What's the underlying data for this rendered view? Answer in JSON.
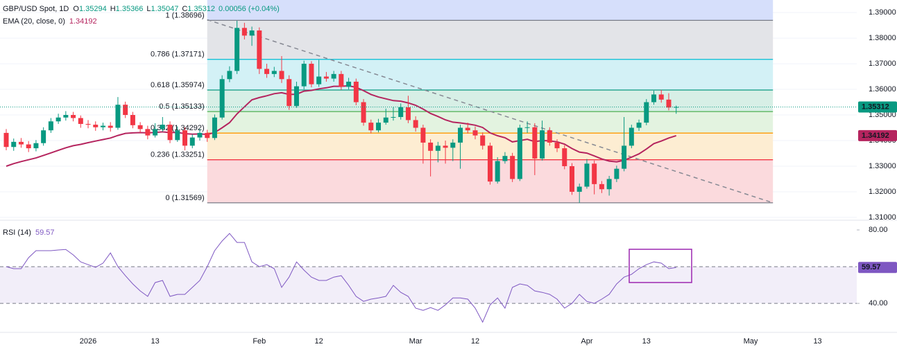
{
  "chart_data": [
    {
      "type": "candlestick",
      "legend_title": "GBP/USD Spot, 1D",
      "ohlc_labels": [
        "O",
        "H",
        "L",
        "C"
      ],
      "change": "0.00056 (+0.04%)",
      "up_color": "#089981",
      "down_color": "#f23645",
      "categories": [
        null,
        null,
        null,
        null,
        null,
        null,
        null,
        null,
        null,
        null,
        null,
        "2026",
        null,
        null,
        null,
        null,
        null,
        null,
        null,
        null,
        "13",
        null,
        null,
        null,
        null,
        null,
        null,
        null,
        null,
        null,
        null,
        null,
        null,
        null,
        "Feb",
        null,
        null,
        null,
        null,
        null,
        null,
        null,
        "12",
        null,
        null,
        null,
        null,
        null,
        null,
        null,
        null,
        null,
        null,
        null,
        null,
        "Mar",
        null,
        null,
        null,
        null,
        null,
        null,
        null,
        "12",
        null,
        null,
        null,
        null,
        null,
        null,
        null,
        null,
        null,
        null,
        null,
        null,
        null,
        null,
        "Apr",
        null,
        null,
        null,
        null,
        null,
        null,
        null,
        "13",
        null,
        null,
        null,
        null,
        null,
        null,
        null,
        null,
        null,
        null,
        null,
        null,
        null,
        "May",
        null,
        null,
        null,
        null,
        null,
        null,
        null,
        null,
        "13"
      ],
      "open": [
        1.343,
        1.3375,
        1.3395,
        1.3385,
        1.337,
        1.339,
        1.344,
        1.3475,
        1.349,
        1.35,
        1.3488,
        1.3465,
        1.3462,
        1.3452,
        1.3458,
        1.345,
        1.354,
        1.35,
        1.346,
        1.3445,
        1.342,
        1.3445,
        1.3462,
        1.3402,
        1.344,
        1.338,
        1.3412,
        1.343,
        1.341,
        1.349,
        1.364,
        1.3672,
        1.384,
        1.381,
        1.383,
        1.368,
        1.366,
        1.3672,
        1.364,
        1.3535,
        1.3612,
        1.37,
        1.362,
        1.365,
        1.3642,
        1.366,
        1.361,
        1.363,
        1.355,
        1.347,
        1.344,
        1.347,
        1.349,
        1.3492,
        1.353,
        1.348,
        1.345,
        1.3392,
        1.336,
        1.338,
        1.3372,
        1.3392,
        1.345,
        1.344,
        1.342,
        1.338,
        1.324,
        1.332,
        1.334,
        1.325,
        1.345,
        1.3452,
        1.333,
        1.344,
        1.3392,
        1.337,
        1.33,
        1.32,
        1.322,
        1.331,
        1.323,
        1.321,
        1.325,
        1.329,
        1.338,
        1.345,
        1.347,
        1.355,
        1.358,
        1.356,
        1.35294,
        null,
        null,
        null,
        null,
        null,
        null,
        null,
        null,
        null,
        null,
        null,
        null,
        null,
        null,
        null,
        null,
        null,
        null,
        null
      ],
      "high": [
        1.3445,
        1.3408,
        1.341,
        1.3398,
        1.3402,
        1.3452,
        1.3488,
        1.3505,
        1.3515,
        1.3512,
        1.3498,
        1.348,
        1.3475,
        1.347,
        1.3472,
        1.357,
        1.3552,
        1.3512,
        1.3472,
        1.3458,
        1.3468,
        1.3492,
        1.3475,
        1.3455,
        1.3452,
        1.3425,
        1.3445,
        1.3442,
        1.3502,
        1.3655,
        1.369,
        1.3868,
        1.386,
        1.3845,
        1.3842,
        1.37,
        1.3688,
        1.373,
        1.3655,
        1.363,
        1.3712,
        1.371,
        1.3715,
        1.3668,
        1.3672,
        1.3672,
        1.3645,
        1.3642,
        1.3562,
        1.3482,
        1.3485,
        1.3525,
        1.353,
        1.3545,
        1.3575,
        1.3495,
        1.3462,
        1.3405,
        1.3395,
        1.34,
        1.3405,
        1.3462,
        1.347,
        1.3455,
        1.3432,
        1.3392,
        1.3335,
        1.3355,
        1.3352,
        1.3462,
        1.3475,
        1.3468,
        1.3478,
        1.3452,
        1.3405,
        1.3382,
        1.3312,
        1.3232,
        1.3328,
        1.3322,
        1.3242,
        1.3262,
        1.3302,
        1.3492,
        1.3462,
        1.3482,
        1.3562,
        1.3595,
        1.3598,
        1.3585,
        1.35366,
        null,
        null,
        null,
        null,
        null,
        null,
        null,
        null,
        null,
        null,
        null,
        null,
        null,
        null,
        null,
        null,
        null,
        null,
        null
      ],
      "low": [
        1.3362,
        1.336,
        1.3372,
        1.3355,
        1.3358,
        1.338,
        1.343,
        1.3465,
        1.3478,
        1.3475,
        1.345,
        1.3448,
        1.3438,
        1.344,
        1.3435,
        1.3442,
        1.3488,
        1.3448,
        1.343,
        1.3405,
        1.3412,
        1.3435,
        1.339,
        1.3395,
        1.3362,
        1.337,
        1.34,
        1.3395,
        1.3402,
        1.3482,
        1.3628,
        1.366,
        1.3795,
        1.377,
        1.366,
        1.3645,
        1.3648,
        1.3625,
        1.352,
        1.3528,
        1.36,
        1.3608,
        1.361,
        1.363,
        1.363,
        1.3598,
        1.36,
        1.3538,
        1.3458,
        1.3428,
        1.3432,
        1.3462,
        1.3478,
        1.3482,
        1.3468,
        1.3435,
        1.331,
        1.326,
        1.3315,
        1.331,
        1.332,
        1.329,
        1.3428,
        1.3405,
        1.3365,
        1.3228,
        1.3232,
        1.331,
        1.3238,
        1.3242,
        1.343,
        1.3265,
        1.3322,
        1.338,
        1.3355,
        1.3288,
        1.3188,
        1.3157,
        1.3212,
        1.319,
        1.3195,
        1.3185,
        1.3238,
        1.328,
        1.337,
        1.3438,
        1.346,
        1.354,
        1.3548,
        1.3518,
        1.35047,
        null,
        null,
        null,
        null,
        null,
        null,
        null,
        null,
        null,
        null,
        null,
        null,
        null,
        null,
        null,
        null,
        null,
        null,
        null
      ],
      "close": [
        1.3375,
        1.3395,
        1.3385,
        1.337,
        1.339,
        1.344,
        1.3475,
        1.349,
        1.35,
        1.3488,
        1.3465,
        1.3462,
        1.3452,
        1.3458,
        1.345,
        1.354,
        1.35,
        1.346,
        1.3445,
        1.342,
        1.3445,
        1.3462,
        1.3402,
        1.344,
        1.338,
        1.3412,
        1.343,
        1.341,
        1.349,
        1.364,
        1.3672,
        1.384,
        1.381,
        1.383,
        1.368,
        1.366,
        1.3672,
        1.364,
        1.3535,
        1.3612,
        1.37,
        1.362,
        1.365,
        1.3642,
        1.366,
        1.361,
        1.363,
        1.355,
        1.347,
        1.344,
        1.347,
        1.349,
        1.3492,
        1.353,
        1.348,
        1.345,
        1.3392,
        1.336,
        1.338,
        1.3372,
        1.3392,
        1.345,
        1.344,
        1.342,
        1.338,
        1.324,
        1.332,
        1.334,
        1.325,
        1.345,
        1.3452,
        1.333,
        1.344,
        1.3392,
        1.337,
        1.33,
        1.32,
        1.322,
        1.331,
        1.323,
        1.321,
        1.325,
        1.329,
        1.338,
        1.345,
        1.347,
        1.355,
        1.358,
        1.356,
        1.3529,
        1.35312,
        null,
        null,
        null,
        null,
        null,
        null,
        null,
        null,
        null,
        null,
        null,
        null,
        null,
        null,
        null,
        null,
        null,
        null,
        null
      ],
      "ema": {
        "name": "EMA (20, close, 0)",
        "color": "#b5245e",
        "values": [
          1.33,
          1.331,
          1.3318,
          1.3325,
          1.3332,
          1.3342,
          1.3352,
          1.3362,
          1.3372,
          1.338,
          1.3385,
          1.3392,
          1.3398,
          1.3404,
          1.341,
          1.342,
          1.3428,
          1.343,
          1.3431,
          1.343,
          1.3432,
          1.3434,
          1.3431,
          1.3432,
          1.3427,
          1.3425,
          1.3426,
          1.3424,
          1.3431,
          1.345,
          1.347,
          1.3504,
          1.3532,
          1.3559,
          1.3568,
          1.3575,
          1.3583,
          1.3587,
          1.358,
          1.3581,
          1.3593,
          1.3596,
          1.3602,
          1.3606,
          1.3612,
          1.3612,
          1.3614,
          1.3608,
          1.3595,
          1.358,
          1.357,
          1.3563,
          1.3556,
          1.3554,
          1.3547,
          1.3538,
          1.3523,
          1.3506,
          1.3494,
          1.3481,
          1.3472,
          1.3469,
          1.3465,
          1.346,
          1.3451,
          1.343,
          1.3419,
          1.3411,
          1.3395,
          1.34,
          1.3405,
          1.3396,
          1.34,
          1.3399,
          1.3395,
          1.3386,
          1.3369,
          1.3355,
          1.3351,
          1.334,
          1.3328,
          1.332,
          1.3317,
          1.3323,
          1.3335,
          1.3348,
          1.3367,
          1.3388,
          1.3398,
          1.341,
          1.34192,
          null,
          null,
          null,
          null,
          null,
          null,
          null,
          null,
          null,
          null,
          null,
          null,
          null,
          null,
          null,
          null,
          null,
          null,
          null
        ]
      },
      "fib": {
        "x_range": [
          27,
          103
        ],
        "levels": [
          {
            "label": "1 (1.38696)",
            "price": 1.38696,
            "color": "#787b86",
            "fill": "#e3e4e8"
          },
          {
            "label": "0.786 (1.37171)",
            "price": 1.37171,
            "color": "#00bcd4",
            "fill": "#d3f1f6"
          },
          {
            "label": "0.618 (1.35974)",
            "price": 1.35974,
            "color": "#089981",
            "fill": "#d7efe6"
          },
          {
            "label": "0.5 (1.35133)",
            "price": 1.35133,
            "color": "#4caf50",
            "fill": "#e3f3e0"
          },
          {
            "label": "0.382 (1.34292)",
            "price": 1.34292,
            "color": "#ff9800",
            "fill": "#fdedd2"
          },
          {
            "label": "0.236 (1.33251)",
            "price": 1.33251,
            "color": "#f23645",
            "fill": "#fbdadd"
          },
          {
            "label": "0 (1.31569)",
            "price": 1.31569,
            "color": "#787b86",
            "fill": null
          }
        ]
      },
      "trendline": {
        "x": [
          27,
          103
        ],
        "y": [
          1.3872,
          1.3157
        ]
      },
      "ylim": [
        1.3089,
        1.3949
      ],
      "yticks": [
        {
          "value": 1.39,
          "label": "1.39000"
        },
        {
          "value": 1.38,
          "label": "1.38000"
        },
        {
          "value": 1.37,
          "label": "1.37000"
        },
        {
          "value": 1.36,
          "label": "1.36000"
        },
        {
          "value": 1.35,
          "label": "1.35000"
        },
        {
          "value": 1.34,
          "label": "1.34000"
        },
        {
          "value": 1.33,
          "label": "1.33000"
        },
        {
          "value": 1.32,
          "label": "1.32000"
        },
        {
          "value": 1.31,
          "label": "1.31000"
        }
      ]
    },
    {
      "type": "line",
      "name": "RSI (14)",
      "color": "#7e57c2",
      "values": [
        60,
        58.9,
        58.9,
        64.9,
        68.7,
        68.7,
        68.7,
        69.1,
        69.4,
        66.4,
        62.6,
        61.1,
        59.6,
        61.9,
        67.5,
        60,
        55.1,
        50.6,
        46.8,
        43.8,
        51.3,
        52.5,
        43.8,
        44.9,
        44.9,
        48.7,
        52.5,
        60,
        68.7,
        74,
        78.1,
        73.2,
        73.2,
        62.6,
        60,
        61.1,
        58.9,
        48.7,
        54.3,
        62.6,
        58.1,
        54.3,
        52.5,
        52.5,
        54.3,
        55.1,
        49.8,
        43.8,
        41.1,
        42.3,
        43,
        43.8,
        49.8,
        46,
        43.8,
        37.4,
        36.2,
        37.7,
        36.2,
        39.2,
        43,
        43,
        42.3,
        37.4,
        29.8,
        39.2,
        43,
        37.4,
        48.7,
        50.6,
        49.8,
        46.8,
        46,
        44.9,
        42.3,
        37.4,
        40,
        44.9,
        41.1,
        40,
        42.3,
        44.9,
        50.6,
        54.3,
        55.8,
        58.9,
        61.1,
        62.6,
        61.9,
        58.9,
        59.57,
        null,
        null,
        null,
        null,
        null,
        null,
        null,
        null,
        null,
        null,
        null,
        null,
        null,
        null,
        null,
        null,
        null,
        null,
        null
      ],
      "bands": [
        40,
        60
      ],
      "ylim": [
        24.2,
        85.3
      ],
      "yticks": [
        {
          "value": 80,
          "label": "80.00"
        },
        {
          "value": 40,
          "label": "40.00"
        }
      ]
    }
  ]
}
